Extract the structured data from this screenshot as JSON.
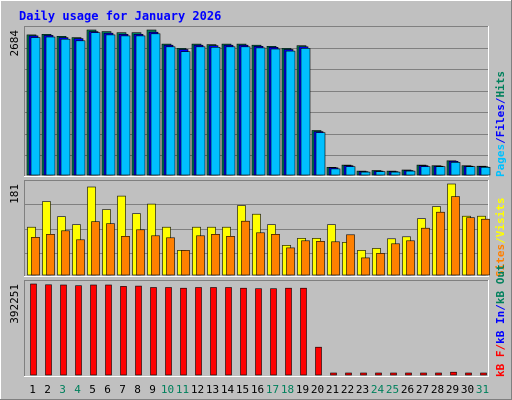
{
  "title": "Daily usage for January 2026",
  "chart_data": [
    {
      "type": "bar",
      "panel": "hits-files-pages",
      "categories": [
        "1",
        "2",
        "3",
        "4",
        "5",
        "6",
        "7",
        "8",
        "9",
        "10",
        "11",
        "12",
        "13",
        "14",
        "15",
        "16",
        "17",
        "18",
        "19",
        "20",
        "21",
        "22",
        "23",
        "24",
        "25",
        "26",
        "27",
        "28",
        "29",
        "30",
        "31"
      ],
      "ymax_label": "2684",
      "ylim": [
        0,
        2684
      ],
      "grid": true,
      "series": [
        {
          "name": "Hits",
          "color": "#00805c",
          "values": [
            2594,
            2604,
            2568,
            2544,
            2684,
            2654,
            2634,
            2634,
            2684,
            2423,
            2343,
            2423,
            2413,
            2423,
            2423,
            2403,
            2383,
            2343,
            2393,
            823,
            143,
            183,
            73,
            83,
            73,
            93,
            183,
            173,
            263,
            173,
            163
          ]
        },
        {
          "name": "Files",
          "color": "#0000ff",
          "values": [
            2574,
            2584,
            2544,
            2524,
            2654,
            2624,
            2604,
            2604,
            2644,
            2403,
            2323,
            2403,
            2393,
            2403,
            2403,
            2383,
            2363,
            2323,
            2373,
            803,
            133,
            173,
            63,
            73,
            63,
            83,
            173,
            163,
            253,
            163,
            153
          ]
        },
        {
          "name": "Pages",
          "color": "#00c0ff",
          "values": [
            2544,
            2554,
            2514,
            2484,
            2634,
            2594,
            2574,
            2574,
            2614,
            2373,
            2283,
            2373,
            2363,
            2373,
            2373,
            2353,
            2333,
            2293,
            2343,
            783,
            113,
            153,
            53,
            63,
            53,
            73,
            153,
            153,
            233,
            153,
            143
          ]
        }
      ],
      "axis_labels": [
        {
          "text": "Pages",
          "color": "#00c0ff"
        },
        {
          "text": "/",
          "color": "#0000ff"
        },
        {
          "text": "Files",
          "color": "#0000ff"
        },
        {
          "text": "/",
          "color": "#0000ff"
        },
        {
          "text": "Hits",
          "color": "#00805c"
        }
      ]
    },
    {
      "type": "bar",
      "panel": "sites-visits",
      "categories": [
        "1",
        "2",
        "3",
        "4",
        "5",
        "6",
        "7",
        "8",
        "9",
        "10",
        "11",
        "12",
        "13",
        "14",
        "15",
        "16",
        "17",
        "18",
        "19",
        "20",
        "21",
        "22",
        "23",
        "24",
        "25",
        "26",
        "27",
        "28",
        "29",
        "30",
        "31"
      ],
      "ymax_label": "181",
      "ylim": [
        0,
        181
      ],
      "grid": true,
      "series": [
        {
          "name": "Visits",
          "color": "#ffff00",
          "values": [
            95,
            146,
            116,
            100,
            175,
            130,
            157,
            122,
            141,
            95,
            49,
            95,
            95,
            95,
            138,
            121,
            100,
            59,
            73,
            73,
            100,
            65,
            49,
            53,
            72,
            76,
            112,
            136,
            181,
            117,
            117
          ]
        },
        {
          "name": "Sites",
          "color": "#ff8000",
          "values": [
            75,
            81,
            88,
            70,
            106,
            102,
            77,
            90,
            78,
            74,
            49,
            78,
            81,
            77,
            107,
            84,
            81,
            54,
            68,
            67,
            66,
            80,
            34,
            43,
            62,
            68,
            93,
            125,
            156,
            114,
            111
          ]
        }
      ],
      "axis_labels": [
        {
          "text": "Sites",
          "color": "#ff8000"
        },
        {
          "text": "/",
          "color": "#ffff00"
        },
        {
          "text": "Visits",
          "color": "#ffff00"
        }
      ]
    },
    {
      "type": "bar",
      "panel": "kbytes",
      "categories": [
        "1",
        "2",
        "3",
        "4",
        "5",
        "6",
        "7",
        "8",
        "9",
        "10",
        "11",
        "12",
        "13",
        "14",
        "15",
        "16",
        "17",
        "18",
        "19",
        "20",
        "21",
        "22",
        "23",
        "24",
        "25",
        "26",
        "27",
        "28",
        "29",
        "30",
        "31"
      ],
      "ymax_label": "392251",
      "ylim": [
        0,
        392251
      ],
      "grid": false,
      "series": [
        {
          "name": "kB F",
          "color": "#ff0000",
          "values": [
            392251,
            389000,
            388000,
            385000,
            388000,
            388000,
            382000,
            383000,
            377000,
            377000,
            374000,
            377000,
            377000,
            377000,
            374000,
            372000,
            372000,
            374000,
            374000,
            120000,
            6000,
            6000,
            6000,
            6000,
            6000,
            6000,
            6000,
            6000,
            12000,
            6000,
            6000
          ]
        }
      ],
      "axis_labels": [
        {
          "text": "kB F",
          "color": "#ff0000"
        },
        {
          "text": "/",
          "color": "#ff0000"
        },
        {
          "text": "kB In",
          "color": "#0000ff"
        },
        {
          "text": "/",
          "color": "#0000ff"
        },
        {
          "text": "kB Out",
          "color": "#00805c"
        }
      ]
    }
  ],
  "x_labels": {
    "weekday_color": "#000000",
    "weekend_color": "#00805c",
    "weekend_days": [
      "3",
      "4",
      "10",
      "11",
      "17",
      "18",
      "24",
      "25",
      "31"
    ]
  },
  "colors": {
    "background": "#c0c0c0",
    "plot_background": "#c0c0c0",
    "title_color": "#0000ff",
    "border_light": "#ffffff",
    "border_dark": "#808080",
    "grid": "#808080"
  }
}
